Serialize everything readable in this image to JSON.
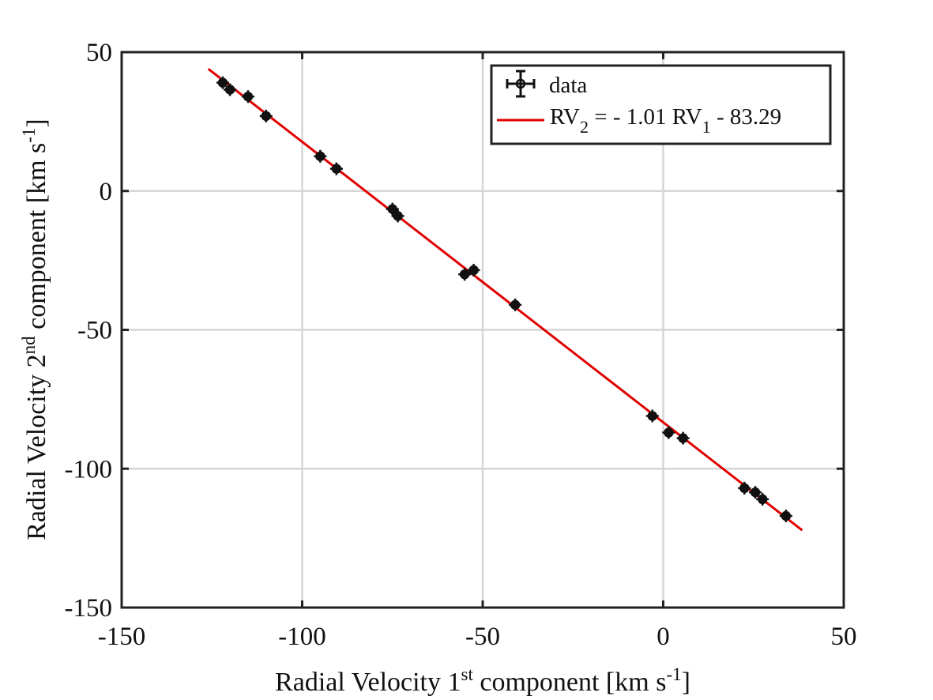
{
  "chart_data": {
    "type": "scatter",
    "xlabel": {
      "pre": "Radial Velocity 1",
      "sup": "st",
      "mid": " component [km s",
      "sup2": "-1",
      "post": "]"
    },
    "ylabel": {
      "pre": "Radial Velocity 2",
      "sup": "nd",
      "mid": " component [km s",
      "sup2": "-1",
      "post": "]"
    },
    "xlim": [
      -150,
      50
    ],
    "ylim": [
      -150,
      50
    ],
    "xticks": [
      -150,
      -100,
      -50,
      0,
      50
    ],
    "yticks": [
      -150,
      -100,
      -50,
      0,
      50
    ],
    "xtick_labels": [
      "-150",
      "-100",
      "-50",
      "0",
      "50"
    ],
    "ytick_labels": [
      "-150",
      "-100",
      "-50",
      "0",
      "50"
    ],
    "grid": true,
    "legend_position": "top-right",
    "legend": {
      "data_label": "data",
      "fit_label": {
        "p1": "RV",
        "s1": "2",
        "p2": " = - 1.01 RV",
        "s2": "1",
        "p3": " - 83.29"
      }
    },
    "series": [
      {
        "name": "data",
        "x": [
          -122,
          -120,
          -115,
          -110,
          -95,
          -90.5,
          -75,
          -73.5,
          -55,
          -52.5,
          -41,
          -3,
          1.5,
          5.5,
          22.5,
          25.5,
          27.5,
          34
        ],
        "y": [
          39,
          36.5,
          34,
          27,
          12.5,
          8,
          -6.5,
          -9,
          -30,
          -28.5,
          -41,
          -81,
          -87,
          -89,
          -107,
          -108.5,
          -111,
          -117
        ]
      },
      {
        "name": "RV2 = - 1.01 RV1 - 83.29",
        "type": "line",
        "x": [
          -126,
          38.5
        ],
        "y": [
          43.97,
          -122.18
        ],
        "color": "#e00000"
      }
    ],
    "colors": {
      "fit_line": "#e00000",
      "markers": "#111111",
      "axes": "#222222",
      "grid": "#d6d6d6"
    }
  }
}
